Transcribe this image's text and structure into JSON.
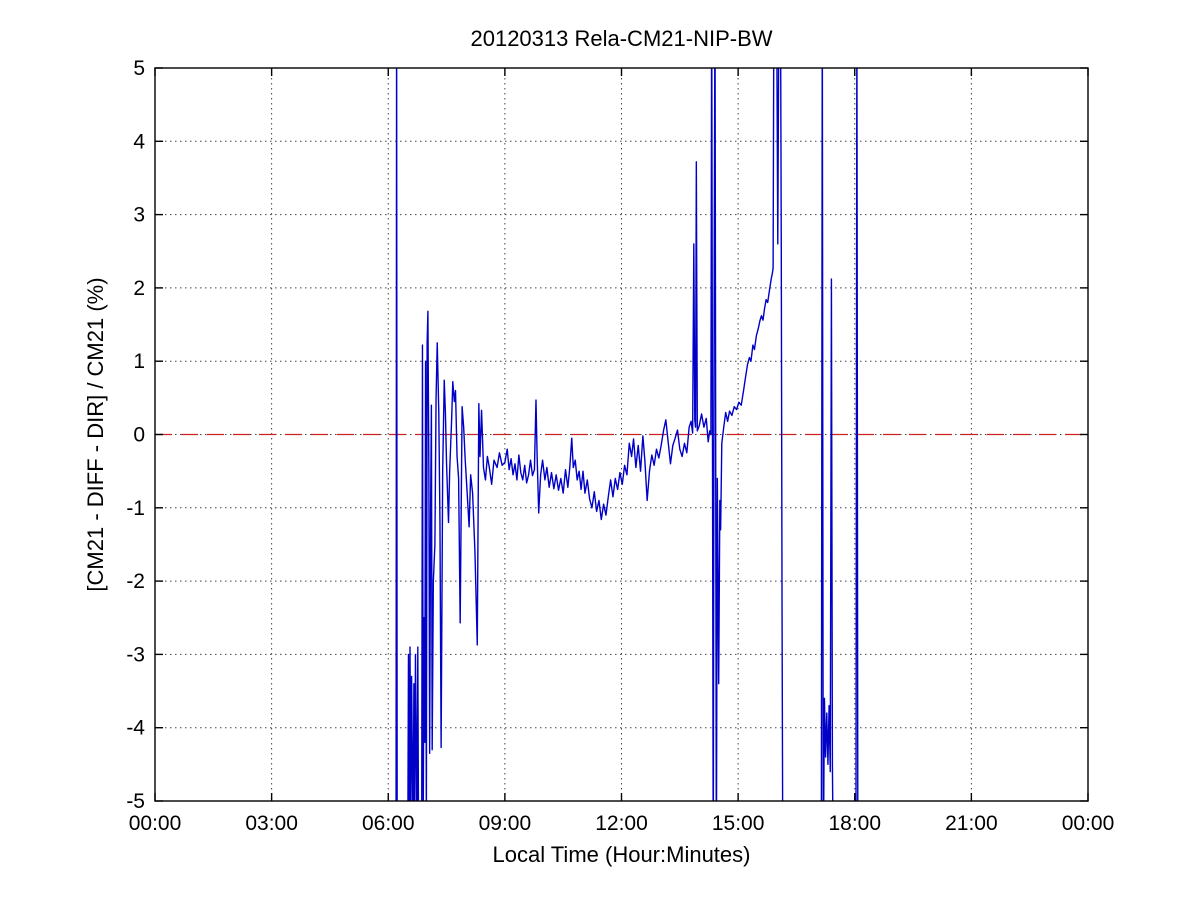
{
  "figure": {
    "background": "#ffffff",
    "axis_color": "#000000",
    "grid_color": "#444444"
  },
  "chart_data": {
    "type": "line",
    "title": "20120313 Rela-CM21-NIP-BW",
    "xlabel": "Local Time (Hour:Minutes)",
    "ylabel": "[CM21 - DIFF - DIR] / CM21 (%)",
    "xlim": [
      0,
      24
    ],
    "ylim": [
      -5,
      5
    ],
    "grid": "dotted",
    "legend": "none",
    "x_tick_hours": [
      0,
      3,
      6,
      9,
      12,
      15,
      18,
      21,
      24
    ],
    "x_tick_labels": [
      "00:00",
      "03:00",
      "06:00",
      "09:00",
      "12:00",
      "15:00",
      "18:00",
      "21:00",
      "00:00"
    ],
    "y_ticks": [
      -5,
      -4,
      -3,
      -2,
      -1,
      0,
      1,
      2,
      3,
      4,
      5
    ],
    "zero_line": {
      "value": 0,
      "color": "#cc2222",
      "style": "dashed"
    },
    "line_color": "#0000c8",
    "series": [
      {
        "name": "relative difference [CM21 - DIFF - DIR] / CM21",
        "points": [
          [
            6.2,
            -6
          ],
          [
            6.215,
            6
          ],
          [
            6.23,
            -6
          ],
          [
            6.5,
            -6
          ],
          [
            6.52,
            -3.0
          ],
          [
            6.54,
            -5.6
          ],
          [
            6.56,
            -2.9
          ],
          [
            6.58,
            -5.6
          ],
          [
            6.6,
            -3.3
          ],
          [
            6.62,
            -4.4
          ],
          [
            6.64,
            -5.6
          ],
          [
            6.66,
            -3.4
          ],
          [
            6.68,
            -5.6
          ],
          [
            6.7,
            -3.0
          ],
          [
            6.72,
            -4.2
          ],
          [
            6.74,
            -5.6
          ],
          [
            6.76,
            -2.9
          ],
          [
            6.78,
            -5.6
          ],
          [
            6.86,
            -5.6
          ],
          [
            6.88,
            1.22
          ],
          [
            6.9,
            -5.2
          ],
          [
            6.92,
            -2.5
          ],
          [
            6.94,
            -4.2
          ],
          [
            6.96,
            1.0
          ],
          [
            6.98,
            -5.4
          ],
          [
            7.0,
            1.25
          ],
          [
            7.02,
            1.68
          ],
          [
            7.045,
            -0.5
          ],
          [
            7.065,
            -4.35
          ],
          [
            7.09,
            -1.0
          ],
          [
            7.11,
            0.4
          ],
          [
            7.13,
            -4.3
          ],
          [
            7.16,
            -2.0
          ],
          [
            7.2,
            -1.5
          ],
          [
            7.23,
            0.5
          ],
          [
            7.26,
            1.25
          ],
          [
            7.3,
            0.3
          ],
          [
            7.33,
            -1.2
          ],
          [
            7.36,
            -4.27
          ],
          [
            7.4,
            -0.5
          ],
          [
            7.44,
            0.74
          ],
          [
            7.47,
            0.3
          ],
          [
            7.5,
            -0.4
          ],
          [
            7.55,
            -1.2
          ],
          [
            7.58,
            -0.5
          ],
          [
            7.63,
            0.2
          ],
          [
            7.66,
            0.72
          ],
          [
            7.7,
            0.45
          ],
          [
            7.73,
            0.6
          ],
          [
            7.77,
            -0.3
          ],
          [
            7.81,
            -0.6
          ],
          [
            7.85,
            -2.57
          ],
          [
            7.9,
            0.38
          ],
          [
            7.94,
            0.1
          ],
          [
            7.98,
            -0.35
          ],
          [
            8.03,
            -0.8
          ],
          [
            8.08,
            -1.26
          ],
          [
            8.12,
            -0.55
          ],
          [
            8.17,
            -0.8
          ],
          [
            8.23,
            -1.6
          ],
          [
            8.29,
            -2.87
          ],
          [
            8.33,
            0.42
          ],
          [
            8.36,
            -0.3
          ],
          [
            8.4,
            0.33
          ],
          [
            8.45,
            -0.45
          ],
          [
            8.5,
            -0.62
          ],
          [
            8.55,
            -0.3
          ],
          [
            8.6,
            -0.45
          ],
          [
            8.66,
            -0.68
          ],
          [
            8.72,
            -0.35
          ],
          [
            8.8,
            -0.45
          ],
          [
            8.86,
            -0.25
          ],
          [
            8.93,
            -0.42
          ],
          [
            9.0,
            -0.38
          ],
          [
            9.06,
            -0.2
          ],
          [
            9.11,
            -0.48
          ],
          [
            9.16,
            -0.33
          ],
          [
            9.21,
            -0.55
          ],
          [
            9.26,
            -0.4
          ],
          [
            9.31,
            -0.62
          ],
          [
            9.36,
            -0.28
          ],
          [
            9.41,
            -0.52
          ],
          [
            9.46,
            -0.62
          ],
          [
            9.51,
            -0.42
          ],
          [
            9.56,
            -0.66
          ],
          [
            9.61,
            -0.55
          ],
          [
            9.66,
            -0.35
          ],
          [
            9.71,
            -0.56
          ],
          [
            9.76,
            -0.48
          ],
          [
            9.8,
            0.47
          ],
          [
            9.83,
            -0.3
          ],
          [
            9.87,
            -1.07
          ],
          [
            9.92,
            -0.55
          ],
          [
            9.97,
            -0.35
          ],
          [
            10.03,
            -0.62
          ],
          [
            10.08,
            -0.45
          ],
          [
            10.14,
            -0.72
          ],
          [
            10.2,
            -0.52
          ],
          [
            10.26,
            -0.74
          ],
          [
            10.32,
            -0.55
          ],
          [
            10.38,
            -0.76
          ],
          [
            10.44,
            -0.6
          ],
          [
            10.5,
            -0.8
          ],
          [
            10.56,
            -0.48
          ],
          [
            10.62,
            -0.72
          ],
          [
            10.67,
            -0.45
          ],
          [
            10.72,
            -0.05
          ],
          [
            10.76,
            -0.45
          ],
          [
            10.81,
            -0.35
          ],
          [
            10.86,
            -0.62
          ],
          [
            10.91,
            -0.5
          ],
          [
            10.96,
            -0.75
          ],
          [
            11.01,
            -0.5
          ],
          [
            11.06,
            -0.8
          ],
          [
            11.12,
            -0.62
          ],
          [
            11.18,
            -0.88
          ],
          [
            11.24,
            -1.0
          ],
          [
            11.3,
            -0.78
          ],
          [
            11.36,
            -1.05
          ],
          [
            11.42,
            -0.9
          ],
          [
            11.48,
            -1.16
          ],
          [
            11.54,
            -0.95
          ],
          [
            11.6,
            -1.1
          ],
          [
            11.66,
            -0.85
          ],
          [
            11.72,
            -0.62
          ],
          [
            11.78,
            -0.85
          ],
          [
            11.84,
            -0.6
          ],
          [
            11.9,
            -0.75
          ],
          [
            11.96,
            -0.52
          ],
          [
            12.02,
            -0.68
          ],
          [
            12.08,
            -0.42
          ],
          [
            12.14,
            -0.55
          ],
          [
            12.2,
            -0.12
          ],
          [
            12.26,
            -0.3
          ],
          [
            12.31,
            -0.06
          ],
          [
            12.37,
            -0.45
          ],
          [
            12.43,
            -0.15
          ],
          [
            12.49,
            -0.5
          ],
          [
            12.55,
            -0.02
          ],
          [
            12.6,
            -0.35
          ],
          [
            12.66,
            -0.9
          ],
          [
            12.72,
            -0.5
          ],
          [
            12.78,
            -0.28
          ],
          [
            12.84,
            -0.42
          ],
          [
            12.9,
            -0.2
          ],
          [
            12.96,
            -0.32
          ],
          [
            13.02,
            -0.15
          ],
          [
            13.08,
            0.05
          ],
          [
            13.14,
            0.2
          ],
          [
            13.2,
            -0.1
          ],
          [
            13.26,
            -0.4
          ],
          [
            13.32,
            -0.15
          ],
          [
            13.38,
            -0.05
          ],
          [
            13.44,
            0.06
          ],
          [
            13.5,
            -0.2
          ],
          [
            13.56,
            -0.3
          ],
          [
            13.62,
            -0.12
          ],
          [
            13.68,
            -0.25
          ],
          [
            13.74,
            0.1
          ],
          [
            13.79,
            0.18
          ],
          [
            13.83,
            0.02
          ],
          [
            13.86,
            2.6
          ],
          [
            13.885,
            0.2
          ],
          [
            13.905,
            0.1
          ],
          [
            13.925,
            3.72
          ],
          [
            13.95,
            0.05
          ],
          [
            14.0,
            0.12
          ],
          [
            14.06,
            0.28
          ],
          [
            14.12,
            0.1
          ],
          [
            14.18,
            0.22
          ],
          [
            14.23,
            -0.1
          ],
          [
            14.27,
            0.05
          ],
          [
            14.3,
            0.0
          ],
          [
            14.32,
            6
          ],
          [
            14.36,
            -6
          ],
          [
            14.385,
            2.5
          ],
          [
            14.405,
            6
          ],
          [
            14.44,
            -6
          ],
          [
            14.465,
            -0.6
          ],
          [
            14.5,
            -3.4
          ],
          [
            14.53,
            -0.9
          ],
          [
            14.55,
            -1.3
          ],
          [
            14.58,
            -0.12
          ],
          [
            14.63,
            0.1
          ],
          [
            14.68,
            0.3
          ],
          [
            14.73,
            0.18
          ],
          [
            14.78,
            0.32
          ],
          [
            14.84,
            0.26
          ],
          [
            14.9,
            0.38
          ],
          [
            14.96,
            0.34
          ],
          [
            15.02,
            0.44
          ],
          [
            15.08,
            0.4
          ],
          [
            15.14,
            0.6
          ],
          [
            15.19,
            0.78
          ],
          [
            15.24,
            0.95
          ],
          [
            15.29,
            1.05
          ],
          [
            15.33,
            1.0
          ],
          [
            15.38,
            1.22
          ],
          [
            15.42,
            1.16
          ],
          [
            15.47,
            1.35
          ],
          [
            15.52,
            1.45
          ],
          [
            15.56,
            1.55
          ],
          [
            15.6,
            1.62
          ],
          [
            15.64,
            1.56
          ],
          [
            15.68,
            1.72
          ],
          [
            15.72,
            1.84
          ],
          [
            15.76,
            1.8
          ],
          [
            15.81,
            1.98
          ],
          [
            15.85,
            2.12
          ],
          [
            15.88,
            2.2
          ],
          [
            15.9,
            2.27
          ],
          [
            15.92,
            6
          ],
          [
            15.99,
            6
          ],
          [
            16.02,
            2.6
          ],
          [
            16.05,
            6
          ],
          [
            16.09,
            6
          ],
          [
            16.11,
            2.5
          ],
          [
            16.13,
            -2.4
          ],
          [
            16.15,
            -6
          ],
          [
            17.14,
            -6
          ],
          [
            17.165,
            6
          ],
          [
            17.19,
            -6
          ],
          [
            17.22,
            -3.6
          ],
          [
            17.25,
            -4.4
          ],
          [
            17.28,
            -3.8
          ],
          [
            17.31,
            -4.5
          ],
          [
            17.34,
            -3.7
          ],
          [
            17.37,
            -4.6
          ],
          [
            17.4,
            2.12
          ],
          [
            17.425,
            -4.5
          ],
          [
            17.45,
            -6
          ],
          [
            18.03,
            -6
          ],
          [
            18.055,
            6
          ],
          [
            18.08,
            -6
          ]
        ]
      }
    ]
  }
}
